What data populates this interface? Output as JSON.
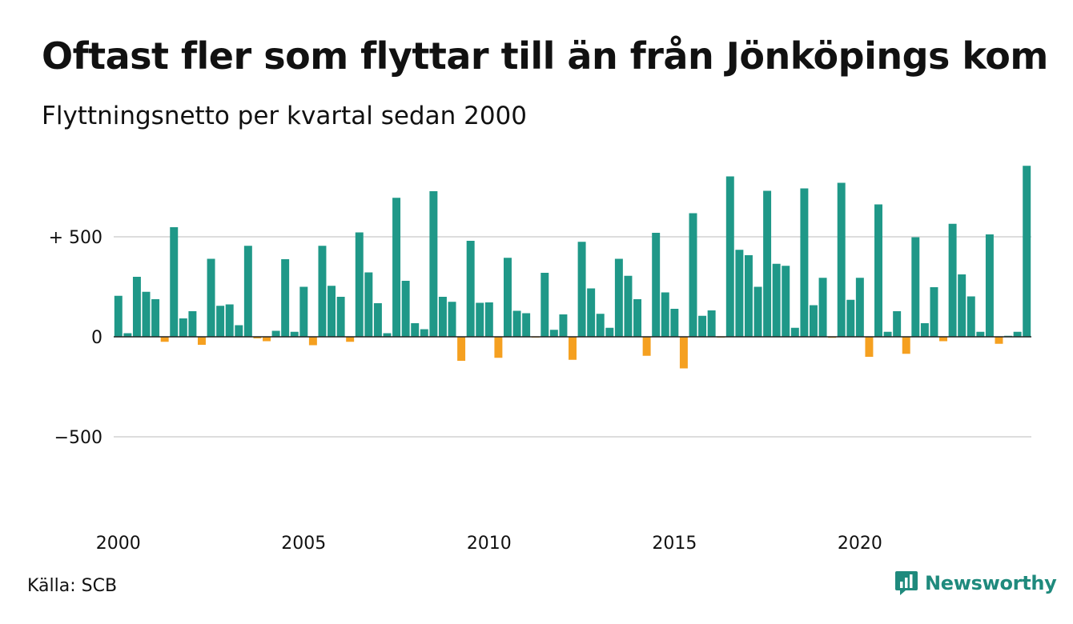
{
  "header": {
    "title": "Oftast fler som flyttar till än från Jönköpings kommun",
    "subtitle": "Flyttningsnetto per kvartal sedan 2000"
  },
  "footer": {
    "source": "Källa: SCB",
    "brand": "Newsworthy",
    "brand_icon": "bar-chart-speech-bubble-icon"
  },
  "colors": {
    "positive": "#1f9888",
    "negative": "#f5a020",
    "zero_line": "#222222",
    "grid": "#dddddd"
  },
  "chart_data": {
    "type": "bar",
    "title": "Oftast fler som flyttar till än från Jönköpings kommun",
    "subtitle": "Flyttningsnetto per kvartal sedan 2000",
    "xlabel": "",
    "ylabel": "",
    "x_start": "2000-Q1",
    "frequency": "quarterly",
    "xticks": [
      "2000",
      "2005",
      "2010",
      "2015",
      "2020"
    ],
    "ylim": [
      -870,
      930
    ],
    "yticks": [
      {
        "value": 500,
        "label": "+ 500"
      },
      {
        "value": 0,
        "label": "0"
      },
      {
        "value": -500,
        "label": "−500"
      }
    ],
    "grid": true,
    "series": [
      {
        "values": [
          205,
          18,
          300,
          225,
          188,
          -25,
          548,
          92,
          128,
          -40,
          390,
          155,
          162,
          58,
          455,
          -8,
          -22,
          30,
          388,
          25,
          250,
          -42,
          455,
          255,
          200,
          -25,
          522,
          322,
          168,
          18,
          695,
          280,
          68,
          38,
          728,
          200,
          175,
          -120,
          480,
          170,
          172,
          -105,
          395,
          130,
          118,
          -3,
          320,
          35,
          112,
          -115,
          475,
          242,
          115,
          45,
          390,
          305,
          188,
          -95,
          520,
          222,
          140,
          -158,
          618,
          105,
          132,
          -3,
          802,
          435,
          408,
          250,
          730,
          365,
          355,
          45,
          742,
          158,
          295,
          -5,
          770,
          185,
          295,
          -100,
          662,
          25,
          128,
          -85,
          498,
          68,
          248,
          -22,
          565,
          312,
          202,
          25,
          512,
          -35,
          5,
          25,
          855
        ]
      }
    ]
  }
}
